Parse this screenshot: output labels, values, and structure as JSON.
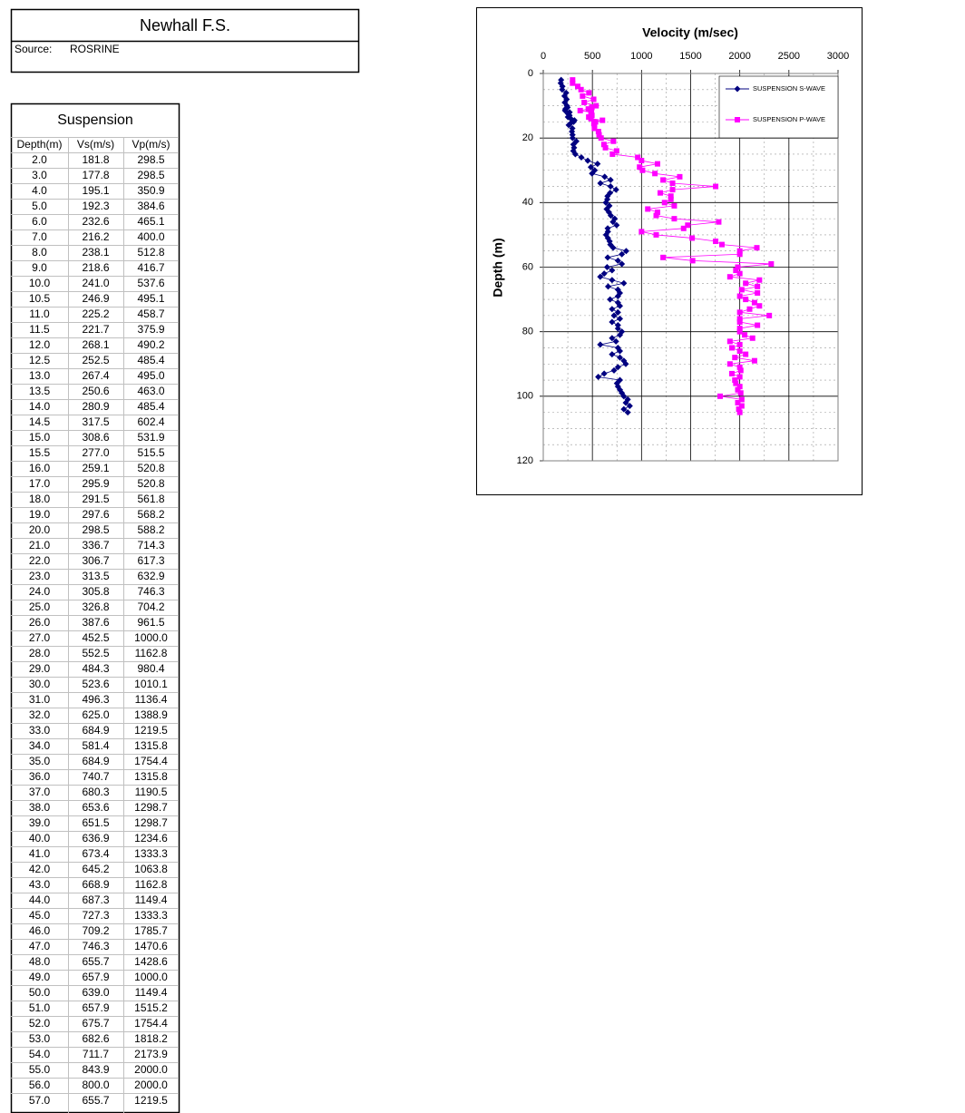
{
  "header": {
    "title": "Newhall F.S.",
    "source_label": "Source:",
    "source": "ROSRINE"
  },
  "table": {
    "title": "Suspension",
    "columns": [
      "Depth(m)",
      "Vs(m/s)",
      "Vp(m/s)"
    ],
    "rows": [
      [
        "2.0",
        "181.8",
        "298.5"
      ],
      [
        "3.0",
        "177.8",
        "298.5"
      ],
      [
        "4.0",
        "195.1",
        "350.9"
      ],
      [
        "5.0",
        "192.3",
        "384.6"
      ],
      [
        "6.0",
        "232.6",
        "465.1"
      ],
      [
        "7.0",
        "216.2",
        "400.0"
      ],
      [
        "8.0",
        "238.1",
        "512.8"
      ],
      [
        "9.0",
        "218.6",
        "416.7"
      ],
      [
        "10.0",
        "241.0",
        "537.6"
      ],
      [
        "10.5",
        "246.9",
        "495.1"
      ],
      [
        "11.0",
        "225.2",
        "458.7"
      ],
      [
        "11.5",
        "221.7",
        "375.9"
      ],
      [
        "12.0",
        "268.1",
        "490.2"
      ],
      [
        "12.5",
        "252.5",
        "485.4"
      ],
      [
        "13.0",
        "267.4",
        "495.0"
      ],
      [
        "13.5",
        "250.6",
        "463.0"
      ],
      [
        "14.0",
        "280.9",
        "485.4"
      ],
      [
        "14.5",
        "317.5",
        "602.4"
      ],
      [
        "15.0",
        "308.6",
        "531.9"
      ],
      [
        "15.5",
        "277.0",
        "515.5"
      ],
      [
        "16.0",
        "259.1",
        "520.8"
      ],
      [
        "17.0",
        "295.9",
        "520.8"
      ],
      [
        "18.0",
        "291.5",
        "561.8"
      ],
      [
        "19.0",
        "297.6",
        "568.2"
      ],
      [
        "20.0",
        "298.5",
        "588.2"
      ],
      [
        "21.0",
        "336.7",
        "714.3"
      ],
      [
        "22.0",
        "306.7",
        "617.3"
      ],
      [
        "23.0",
        "313.5",
        "632.9"
      ],
      [
        "24.0",
        "305.8",
        "746.3"
      ],
      [
        "25.0",
        "326.8",
        "704.2"
      ],
      [
        "26.0",
        "387.6",
        "961.5"
      ],
      [
        "27.0",
        "452.5",
        "1000.0"
      ],
      [
        "28.0",
        "552.5",
        "1162.8"
      ],
      [
        "29.0",
        "484.3",
        "980.4"
      ],
      [
        "30.0",
        "523.6",
        "1010.1"
      ],
      [
        "31.0",
        "496.3",
        "1136.4"
      ],
      [
        "32.0",
        "625.0",
        "1388.9"
      ],
      [
        "33.0",
        "684.9",
        "1219.5"
      ],
      [
        "34.0",
        "581.4",
        "1315.8"
      ],
      [
        "35.0",
        "684.9",
        "1754.4"
      ],
      [
        "36.0",
        "740.7",
        "1315.8"
      ],
      [
        "37.0",
        "680.3",
        "1190.5"
      ],
      [
        "38.0",
        "653.6",
        "1298.7"
      ],
      [
        "39.0",
        "651.5",
        "1298.7"
      ],
      [
        "40.0",
        "636.9",
        "1234.6"
      ],
      [
        "41.0",
        "673.4",
        "1333.3"
      ],
      [
        "42.0",
        "645.2",
        "1063.8"
      ],
      [
        "43.0",
        "668.9",
        "1162.8"
      ],
      [
        "44.0",
        "687.3",
        "1149.4"
      ],
      [
        "45.0",
        "727.3",
        "1333.3"
      ],
      [
        "46.0",
        "709.2",
        "1785.7"
      ],
      [
        "47.0",
        "746.3",
        "1470.6"
      ],
      [
        "48.0",
        "655.7",
        "1428.6"
      ],
      [
        "49.0",
        "657.9",
        "1000.0"
      ],
      [
        "50.0",
        "639.0",
        "1149.4"
      ],
      [
        "51.0",
        "657.9",
        "1515.2"
      ],
      [
        "52.0",
        "675.7",
        "1754.4"
      ],
      [
        "53.0",
        "682.6",
        "1818.2"
      ],
      [
        "54.0",
        "711.7",
        "2173.9"
      ],
      [
        "55.0",
        "843.9",
        "2000.0"
      ],
      [
        "56.0",
        "800.0",
        "2000.0"
      ],
      [
        "57.0",
        "655.7",
        "1219.5"
      ]
    ]
  },
  "chart_data": {
    "type": "line",
    "title": "Velocity (m/sec)",
    "ylabel": "Depth (m)",
    "xlim": [
      0,
      3000
    ],
    "xticks": [
      0,
      500,
      1000,
      1500,
      2000,
      2500,
      3000
    ],
    "x_axis_position": "top",
    "ylim": [
      0,
      120
    ],
    "yticks": [
      0,
      20,
      40,
      60,
      80,
      100,
      120
    ],
    "y_inverted": true,
    "grid": true,
    "legend": "top-right",
    "series": [
      {
        "name": "SUSPENSION S-WAVE",
        "color": "#000080",
        "marker": "diamond",
        "x": [
          181.8,
          177.8,
          195.1,
          192.3,
          232.6,
          216.2,
          238.1,
          218.6,
          241.0,
          246.9,
          225.2,
          221.7,
          268.1,
          252.5,
          267.4,
          250.6,
          280.9,
          317.5,
          308.6,
          277.0,
          259.1,
          295.9,
          291.5,
          297.6,
          298.5,
          336.7,
          306.7,
          313.5,
          305.8,
          326.8,
          387.6,
          452.5,
          552.5,
          484.3,
          523.6,
          496.3,
          625.0,
          684.9,
          581.4,
          684.9,
          740.7,
          680.3,
          653.6,
          651.5,
          636.9,
          673.4,
          645.2,
          668.9,
          687.3,
          727.3,
          709.2,
          746.3,
          655.7,
          657.9,
          639.0,
          657.9,
          675.7,
          682.6,
          711.7,
          843.9,
          800.0,
          655.7,
          760,
          800,
          650,
          700,
          620,
          580,
          700,
          820,
          660,
          760,
          780,
          760,
          680,
          760,
          780,
          700,
          760,
          720,
          780,
          700,
          760,
          760,
          800,
          780,
          700,
          740,
          580,
          760,
          780,
          700,
          780,
          820,
          840,
          760,
          720,
          620,
          560,
          780,
          750,
          760,
          780,
          800,
          820,
          860,
          840,
          880,
          820,
          860
        ],
        "values": [
          2,
          3,
          4,
          5,
          6,
          7,
          8,
          9,
          10,
          10.5,
          11,
          11.5,
          12,
          12.5,
          13,
          13.5,
          14,
          14.5,
          15,
          15.5,
          16,
          17,
          18,
          19,
          20,
          21,
          22,
          23,
          24,
          25,
          26,
          27,
          28,
          29,
          30,
          31,
          32,
          33,
          34,
          35,
          36,
          37,
          38,
          39,
          40,
          41,
          42,
          43,
          44,
          45,
          46,
          47,
          48,
          49,
          50,
          51,
          52,
          53,
          54,
          55,
          56,
          57,
          58,
          59,
          60,
          61,
          62,
          63,
          64,
          65,
          66,
          67,
          68,
          69,
          70,
          71,
          72,
          73,
          74,
          75,
          76,
          77,
          78,
          79,
          80,
          81,
          82,
          83,
          84,
          85,
          86,
          87,
          88,
          89,
          90,
          91,
          92,
          93,
          94,
          95,
          96,
          97,
          98,
          99,
          100,
          101,
          102,
          103,
          104,
          105
        ]
      },
      {
        "name": "SUSPENSION P-WAVE",
        "color": "#ff00ff",
        "marker": "square",
        "x": [
          298.5,
          298.5,
          350.9,
          384.6,
          465.1,
          400.0,
          512.8,
          416.7,
          537.6,
          495.1,
          458.7,
          375.9,
          490.2,
          485.4,
          495.0,
          463.0,
          485.4,
          602.4,
          531.9,
          515.5,
          520.8,
          520.8,
          561.8,
          568.2,
          588.2,
          714.3,
          617.3,
          632.9,
          746.3,
          704.2,
          961.5,
          1000.0,
          1162.8,
          980.4,
          1010.1,
          1136.4,
          1388.9,
          1219.5,
          1315.8,
          1754.4,
          1315.8,
          1190.5,
          1298.7,
          1298.7,
          1234.6,
          1333.3,
          1063.8,
          1162.8,
          1149.4,
          1333.3,
          1785.7,
          1470.6,
          1428.6,
          1000.0,
          1149.4,
          1515.2,
          1754.4,
          1818.2,
          2173.9,
          2000.0,
          2000.0,
          1219.5,
          1520,
          2320,
          1980,
          1960,
          2000,
          1900,
          2200,
          2060,
          2180,
          2020,
          2180,
          2000,
          2060,
          2150,
          2200,
          2100,
          2000,
          2300,
          2000,
          2000,
          2180,
          2000,
          2000,
          2050,
          2130,
          1900,
          2000,
          1920,
          2000,
          2060,
          1950,
          2150,
          1900,
          2000,
          2010,
          1920,
          2000,
          1950,
          1960,
          2000,
          1980,
          2010,
          1800,
          2020,
          1980,
          2020,
          1990,
          2000
        ],
        "values": [
          2,
          3,
          4,
          5,
          6,
          7,
          8,
          9,
          10,
          10.5,
          11,
          11.5,
          12,
          12.5,
          13,
          13.5,
          14,
          14.5,
          15,
          15.5,
          16,
          17,
          18,
          19,
          20,
          21,
          22,
          23,
          24,
          25,
          26,
          27,
          28,
          29,
          30,
          31,
          32,
          33,
          34,
          35,
          36,
          37,
          38,
          39,
          40,
          41,
          42,
          43,
          44,
          45,
          46,
          47,
          48,
          49,
          50,
          51,
          52,
          53,
          54,
          55,
          56,
          57,
          58,
          59,
          60,
          61,
          62,
          63,
          64,
          65,
          66,
          67,
          68,
          69,
          70,
          71,
          72,
          73,
          74,
          75,
          76,
          77,
          78,
          79,
          80,
          81,
          82,
          83,
          84,
          85,
          86,
          87,
          88,
          89,
          90,
          91,
          92,
          93,
          94,
          95,
          96,
          97,
          98,
          99,
          100,
          101,
          102,
          103,
          104,
          105
        ]
      }
    ]
  }
}
